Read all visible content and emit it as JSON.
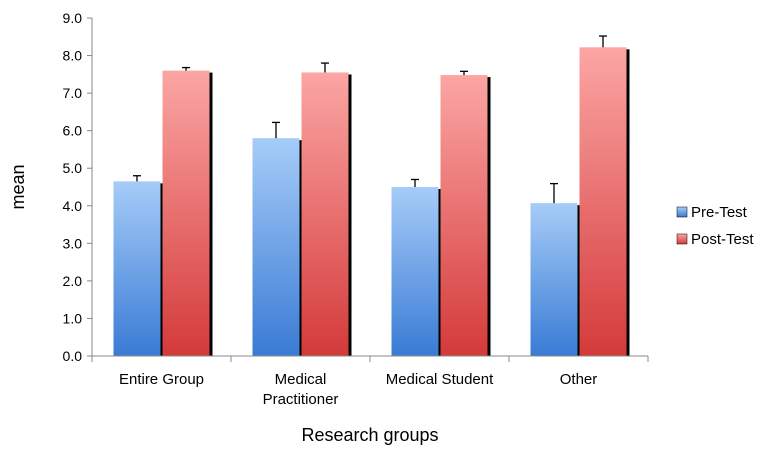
{
  "chart_data": {
    "type": "bar",
    "title": "",
    "xlabel": "Research groups",
    "ylabel": "mean",
    "ylim": [
      0,
      9
    ],
    "yticks": [
      "0.0",
      "1.0",
      "2.0",
      "3.0",
      "4.0",
      "5.0",
      "6.0",
      "7.0",
      "8.0",
      "9.0"
    ],
    "categories": [
      [
        "Entire Group"
      ],
      [
        "Medical",
        "Practitioner"
      ],
      [
        "Medical Student"
      ],
      [
        "Other"
      ]
    ],
    "series": [
      {
        "name": "Pre-Test",
        "values": [
          4.65,
          5.8,
          4.5,
          4.07
        ],
        "errors": [
          0.15,
          0.42,
          0.2,
          0.52
        ],
        "color_light": "#a6ccf8",
        "color_dark": "#3a7bd5"
      },
      {
        "name": "Post-Test",
        "values": [
          7.6,
          7.55,
          7.48,
          8.22
        ],
        "errors": [
          0.08,
          0.25,
          0.1,
          0.3
        ],
        "color_light": "#fba6a4",
        "color_dark": "#d43a3a"
      }
    ],
    "legend_position": "right",
    "grid": false
  }
}
